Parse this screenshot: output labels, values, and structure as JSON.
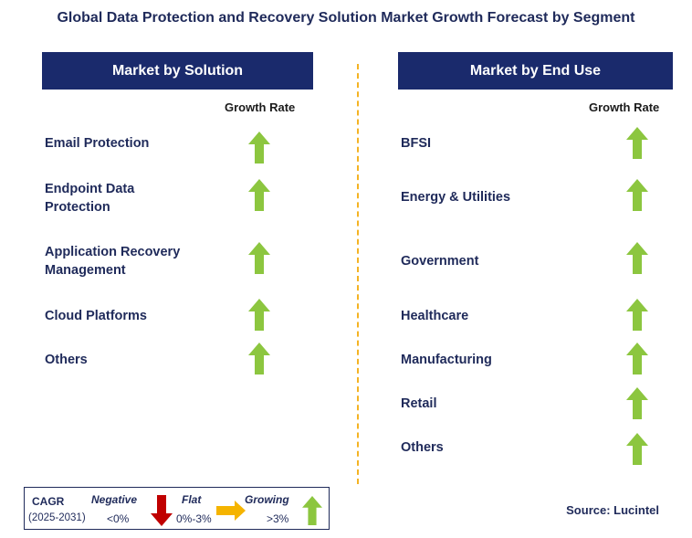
{
  "title": "Global Data Protection and Recovery Solution Market Growth Forecast by Segment",
  "left_panel": {
    "header": "Market by Solution",
    "growth_rate_label": "Growth Rate",
    "items": [
      {
        "line1": "Email Protection",
        "line2": "",
        "trend": "growing"
      },
      {
        "line1": "Endpoint Data",
        "line2": "Protection",
        "trend": "growing"
      },
      {
        "line1": "Application Recovery",
        "line2": "Management",
        "trend": "growing"
      },
      {
        "line1": "Cloud Platforms",
        "line2": "",
        "trend": "growing"
      },
      {
        "line1": "Others",
        "line2": "",
        "trend": "growing"
      }
    ]
  },
  "right_panel": {
    "header": "Market by End Use",
    "growth_rate_label": "Growth Rate",
    "items": [
      {
        "label": "BFSI",
        "trend": "growing"
      },
      {
        "label": "Energy & Utilities",
        "trend": "growing"
      },
      {
        "label": "Government",
        "trend": "growing"
      },
      {
        "label": "Healthcare",
        "trend": "growing"
      },
      {
        "label": "Manufacturing",
        "trend": "growing"
      },
      {
        "label": "Retail",
        "trend": "growing"
      },
      {
        "label": "Others",
        "trend": "growing"
      }
    ]
  },
  "legend": {
    "cagr": "CAGR",
    "period": "(2025-2031)",
    "negative": "Negative",
    "negative_range": "<0%",
    "flat": "Flat",
    "flat_range": "0%-3%",
    "growing": "Growing",
    "growing_range": ">3%"
  },
  "source": "Source: Lucintel",
  "colors": {
    "header_bg": "#1a2a6c",
    "growing_arrow": "#8cc63f",
    "negative_arrow": "#c00000",
    "flat_arrow": "#f5b400",
    "divider": "#f4b323"
  }
}
